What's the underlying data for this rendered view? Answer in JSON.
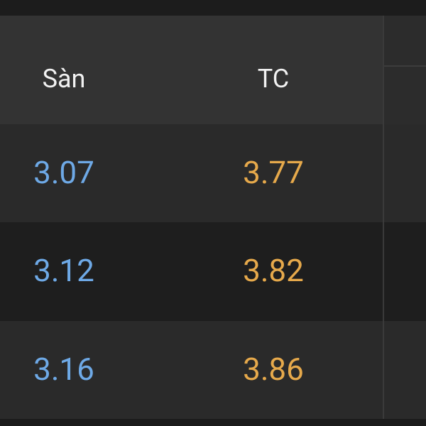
{
  "table": {
    "header": [
      "Sàn",
      "TC"
    ],
    "rows": [
      [
        "3.07",
        "3.77"
      ],
      [
        "3.12",
        "3.82"
      ],
      [
        "3.16",
        "3.86"
      ]
    ]
  }
}
